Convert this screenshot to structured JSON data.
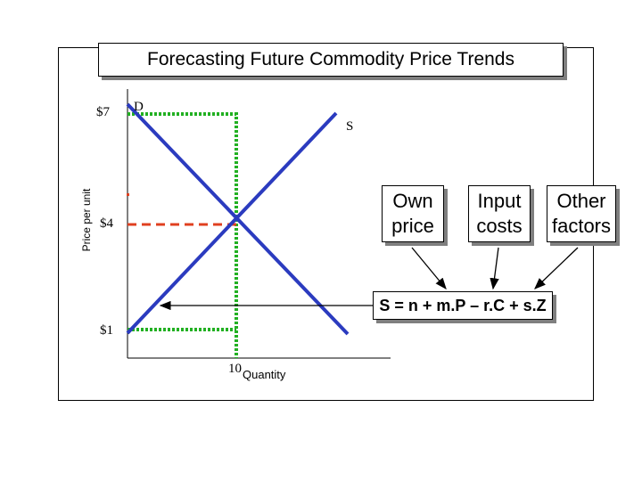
{
  "title": "Forecasting Future Commodity Price Trends",
  "axis": {
    "y_label": "Price per unit",
    "x_label": "Quantity",
    "x_tick": "10",
    "y_ticks": [
      "$7",
      "$4",
      "$1"
    ]
  },
  "curves": {
    "demand_label": "D",
    "supply_label": "S",
    "line_color": "#2b3bbf"
  },
  "guides": {
    "price_guide_color": "#22b022",
    "equilibrium_guide_color": "#e04020"
  },
  "factors": [
    {
      "line1": "Own",
      "line2": "price"
    },
    {
      "line1": "Input",
      "line2": "costs"
    },
    {
      "line1": "Other",
      "line2": "factors"
    }
  ],
  "equation": "S = n + m.P – r.C + s.Z"
}
